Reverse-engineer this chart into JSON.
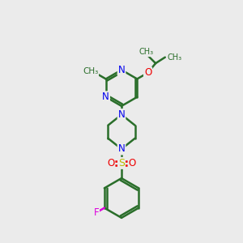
{
  "bg_color": "#ebebeb",
  "bond_color": "#2a6e2a",
  "bond_width": 1.8,
  "N_color": "#0000ee",
  "O_color": "#ee0000",
  "S_color": "#bbbb00",
  "F_color": "#dd00dd",
  "fig_width": 3.0,
  "fig_height": 3.0,
  "dpi": 100,
  "xlim": [
    0,
    10
  ],
  "ylim": [
    0,
    14
  ]
}
